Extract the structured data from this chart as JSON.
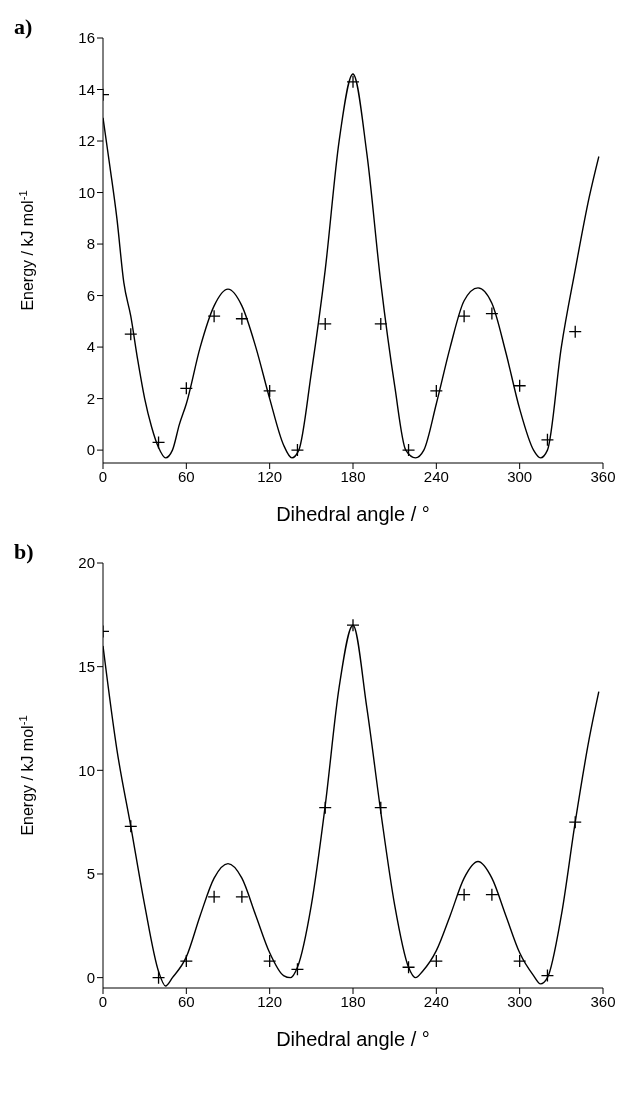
{
  "chart_data": [
    {
      "type": "scatter",
      "title": "a)",
      "xlabel": "Dihedral angle / °",
      "ylabel": "Energy / kJ mol$^{-1}$",
      "xlim": [
        0,
        360
      ],
      "xticks": [
        0,
        60,
        120,
        180,
        240,
        300,
        360
      ],
      "ylim": [
        -0.5,
        16
      ],
      "yticks": [
        0,
        2,
        4,
        6,
        8,
        10,
        12,
        14,
        16
      ],
      "grid": false,
      "legend": false,
      "line_style": "solid",
      "series": [
        {
          "marker": "cross",
          "color": "#000000",
          "x": [
            0,
            20,
            40,
            60,
            80,
            100,
            120,
            140,
            160,
            180,
            200,
            220,
            240,
            260,
            280,
            300,
            320,
            340
          ],
          "values": [
            13.8,
            4.5,
            0.3,
            2.4,
            5.2,
            5.1,
            2.3,
            0.0,
            4.9,
            14.3,
            4.9,
            0.0,
            2.3,
            5.2,
            5.3,
            2.5,
            0.4,
            4.6
          ]
        },
        {
          "type": "line",
          "color": "#000000",
          "x": [
            0,
            5,
            10,
            15,
            20,
            25,
            30,
            35,
            40,
            45,
            50,
            55,
            60,
            70,
            80,
            90,
            100,
            110,
            120,
            130,
            136,
            141,
            150,
            160,
            170,
            180,
            190,
            200,
            210,
            218,
            225,
            231,
            240,
            250,
            260,
            270,
            280,
            290,
            300,
            310,
            315,
            320,
            330,
            340,
            350,
            357
          ],
          "values": [
            12.9,
            11,
            9,
            6.5,
            5.2,
            3.5,
            2,
            0.9,
            0.1,
            -0.3,
            0,
            1,
            1.8,
            4,
            5.6,
            6.25,
            5.6,
            4,
            2,
            0.2,
            -0.3,
            0,
            3,
            7,
            12,
            14.6,
            11.5,
            6.5,
            2.5,
            0,
            -0.3,
            0,
            1.8,
            4,
            5.8,
            6.3,
            5.7,
            3.8,
            1.6,
            0,
            -0.3,
            0,
            4,
            7,
            9.8,
            11.4
          ]
        }
      ]
    },
    {
      "type": "scatter",
      "title": "b)",
      "xlabel": "Dihedral angle / °",
      "ylabel": "Energy / kJ mol$^{-1}$",
      "xlim": [
        0,
        360
      ],
      "xticks": [
        0,
        60,
        120,
        180,
        240,
        300,
        360
      ],
      "ylim": [
        -0.5,
        20
      ],
      "yticks": [
        0,
        5,
        10,
        15,
        20
      ],
      "grid": false,
      "legend": false,
      "line_style": "solid",
      "series": [
        {
          "marker": "cross",
          "color": "#000000",
          "x": [
            0,
            20,
            40,
            60,
            80,
            100,
            120,
            140,
            160,
            180,
            200,
            220,
            240,
            260,
            280,
            300,
            320,
            340
          ],
          "values": [
            16.7,
            7.3,
            0.0,
            0.8,
            3.9,
            3.9,
            0.8,
            0.4,
            8.2,
            17.0,
            8.2,
            0.5,
            0.8,
            4.0,
            4.0,
            0.8,
            0.1,
            7.5
          ]
        },
        {
          "type": "line",
          "color": "#000000",
          "x": [
            0,
            10,
            20,
            30,
            40,
            45,
            50,
            60,
            70,
            80,
            90,
            100,
            110,
            120,
            130,
            135,
            140,
            150,
            160,
            170,
            180,
            190,
            200,
            210,
            220,
            225,
            230,
            240,
            250,
            260,
            270,
            280,
            290,
            300,
            310,
            315,
            320,
            330,
            340,
            350,
            357
          ],
          "values": [
            16,
            11,
            7.3,
            3.5,
            0.3,
            -0.4,
            0,
            1,
            3,
            4.8,
            5.5,
            4.8,
            3,
            1.2,
            0.1,
            0,
            0.5,
            3.5,
            8.3,
            14,
            17,
            13,
            8,
            3.5,
            0.5,
            0,
            0.3,
            1.3,
            3,
            4.8,
            5.6,
            4.8,
            3,
            1.2,
            0.1,
            -0.3,
            0,
            3,
            7.5,
            11.5,
            13.8
          ]
        }
      ]
    }
  ]
}
